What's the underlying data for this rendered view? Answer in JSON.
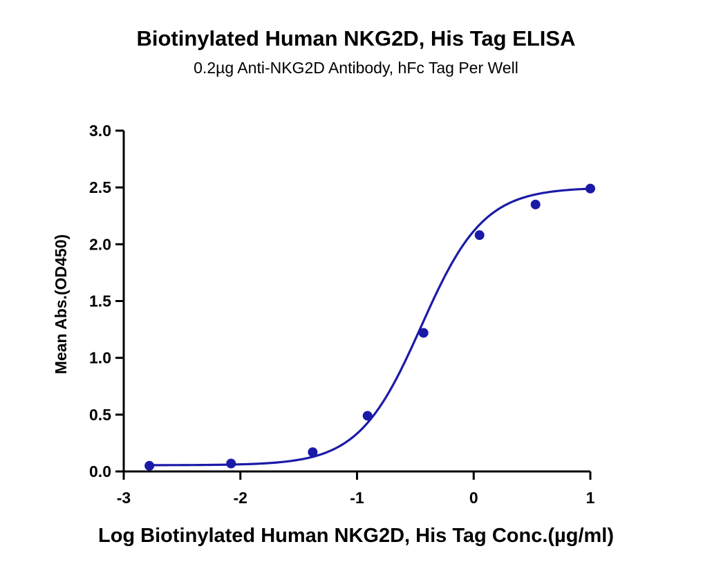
{
  "chart_data": {
    "type": "scatter",
    "title": "Biotinylated Human NKG2D, His Tag ELISA",
    "subtitle": "0.2µg Anti-NKG2D Antibody, hFc Tag Per Well",
    "xlabel": "Log Biotinylated Human NKG2D, His Tag Conc.(µg/ml)",
    "ylabel": "Mean Abs.(OD450)",
    "xlim": [
      -3,
      1
    ],
    "ylim": [
      0,
      3
    ],
    "xticks": [
      -3,
      -2,
      -1,
      0,
      1
    ],
    "yticks": [
      0.0,
      0.5,
      1.0,
      1.5,
      2.0,
      2.5,
      3.0
    ],
    "xtick_labels": [
      "-3",
      "-2",
      "-1",
      "0",
      "1"
    ],
    "ytick_labels": [
      "0.0",
      "0.5",
      "1.0",
      "1.5",
      "2.0",
      "2.5",
      "3.0"
    ],
    "grid": false,
    "legend": "none",
    "series": [
      {
        "type": "scatter",
        "color": "#1a1aa8",
        "x": [
          -2.78,
          -2.08,
          -1.38,
          -0.91,
          -0.43,
          0.05,
          0.53,
          1.0
        ],
        "y": [
          0.05,
          0.07,
          0.17,
          0.49,
          1.22,
          2.08,
          2.35,
          2.49
        ]
      },
      {
        "type": "fit-curve",
        "model": "4PL",
        "color": "#1a1aa8",
        "bottom": 0.055,
        "top": 2.5,
        "logEC50": -0.45,
        "hill": 1.62
      }
    ]
  }
}
